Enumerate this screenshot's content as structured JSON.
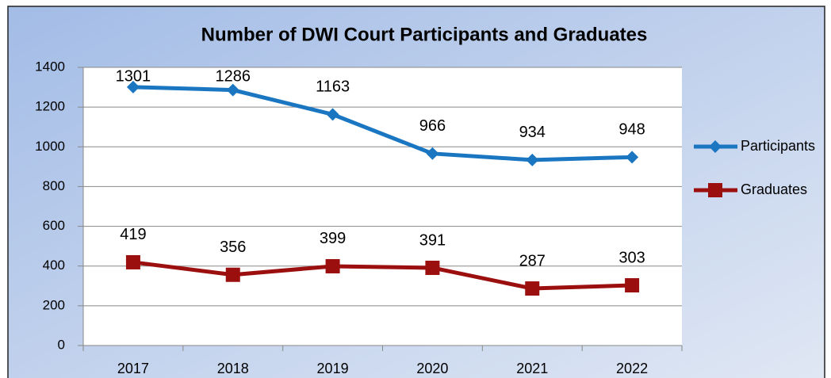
{
  "chart_data": {
    "type": "line",
    "title": "Number of DWI Court Participants and Graduates",
    "categories": [
      "2017",
      "2018",
      "2019",
      "2020",
      "2021",
      "2022"
    ],
    "series": [
      {
        "name": "Participants",
        "color": "#1b76c2",
        "marker": "diamond",
        "values": [
          1301,
          1286,
          1163,
          966,
          934,
          948
        ]
      },
      {
        "name": "Graduates",
        "color": "#9c0f0f",
        "marker": "square",
        "values": [
          419,
          356,
          399,
          391,
          287,
          303
        ]
      }
    ],
    "ylim": [
      0,
      1400
    ],
    "yticks": [
      0,
      200,
      400,
      600,
      800,
      1000,
      1200,
      1400
    ],
    "grid": true,
    "legend": "right"
  }
}
